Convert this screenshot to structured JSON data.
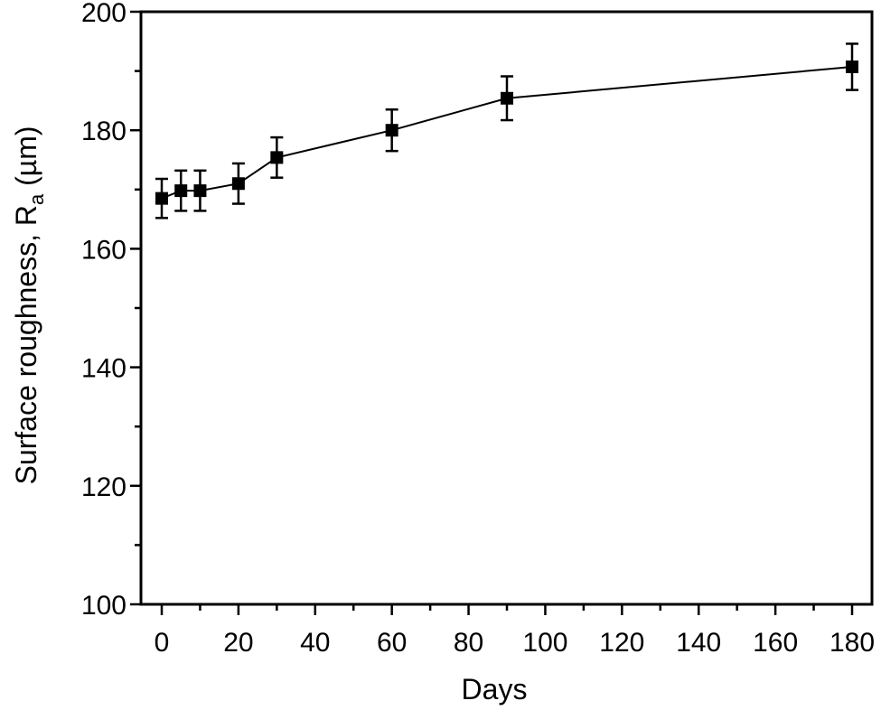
{
  "chart_data": {
    "type": "line",
    "title": "",
    "xlabel": "Days",
    "ylabel": "Surface roughness, Ra (µm)",
    "ylabel_parts": {
      "main": "Surface roughness, R",
      "sub": "a",
      "unit": " (µm)"
    },
    "xlim": [
      -5.5,
      185
    ],
    "ylim": [
      100,
      200
    ],
    "xticks": [
      0,
      20,
      40,
      60,
      80,
      100,
      120,
      140,
      160,
      180
    ],
    "yticks": [
      100,
      120,
      140,
      160,
      180,
      200
    ],
    "grid": false,
    "legend": null,
    "series": [
      {
        "name": "Ra",
        "marker": "square",
        "color": "#000000",
        "x": [
          0,
          5,
          10,
          20,
          30,
          60,
          90,
          180
        ],
        "values": [
          168.5,
          169.8,
          169.8,
          171.0,
          175.4,
          180.0,
          185.4,
          190.7
        ],
        "error": [
          3.3,
          3.4,
          3.4,
          3.4,
          3.4,
          3.5,
          3.7,
          3.9
        ]
      }
    ]
  }
}
